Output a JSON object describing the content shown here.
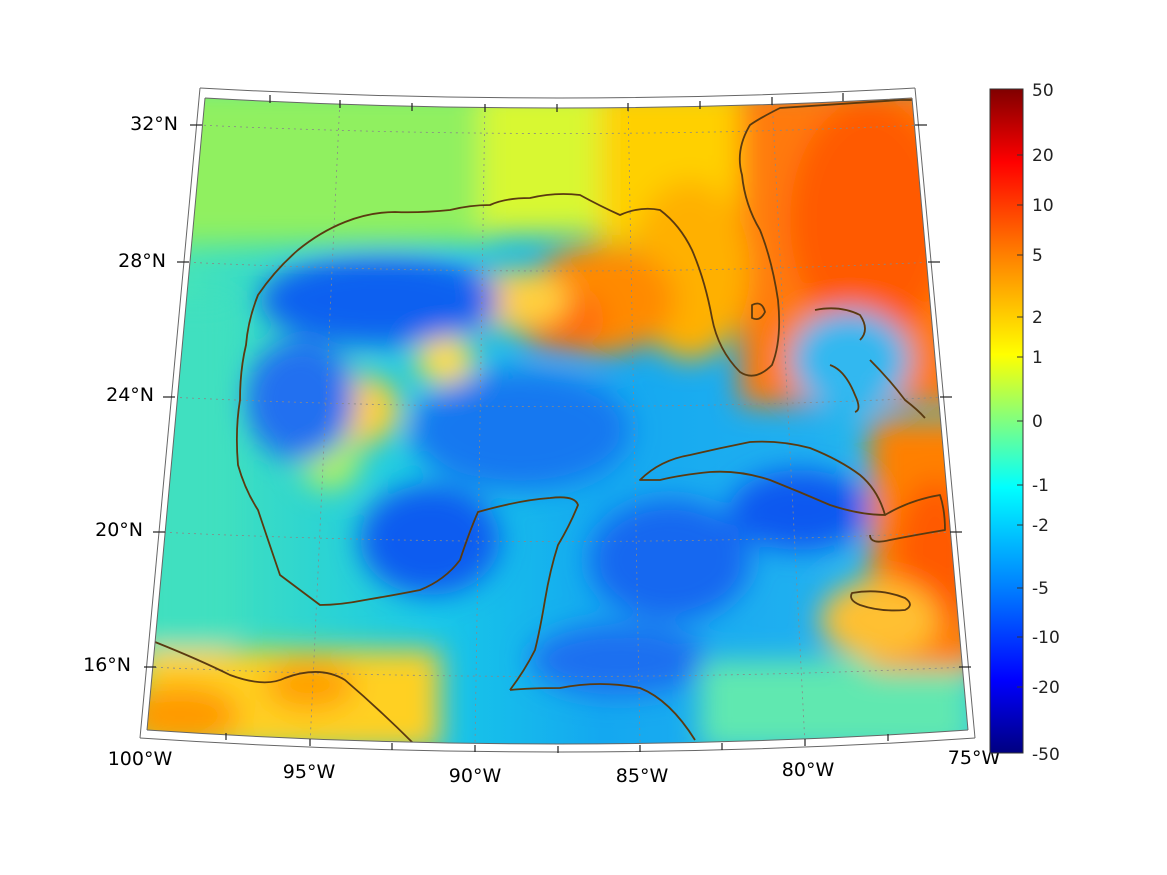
{
  "map": {
    "region": "Gulf of Mexico and Caribbean",
    "lat_labels": [
      "32°N",
      "28°N",
      "24°N",
      "20°N",
      "16°N"
    ],
    "lon_labels": [
      "100°W",
      "95°W",
      "90°W",
      "85°W",
      "80°W",
      "75°W"
    ],
    "coastline_color": "#5a3a10"
  },
  "colorbar": {
    "colormap": "jet",
    "ticks": [
      "50",
      "20",
      "10",
      "5",
      "2",
      "1",
      "0",
      "-1",
      "-2",
      "-5",
      "-10",
      "-20",
      "-50"
    ],
    "colors": [
      "#800000",
      "#ff0000",
      "#ff8000",
      "#ffff00",
      "#80ff80",
      "#00ffff",
      "#0080ff",
      "#0000ff",
      "#000080"
    ]
  }
}
